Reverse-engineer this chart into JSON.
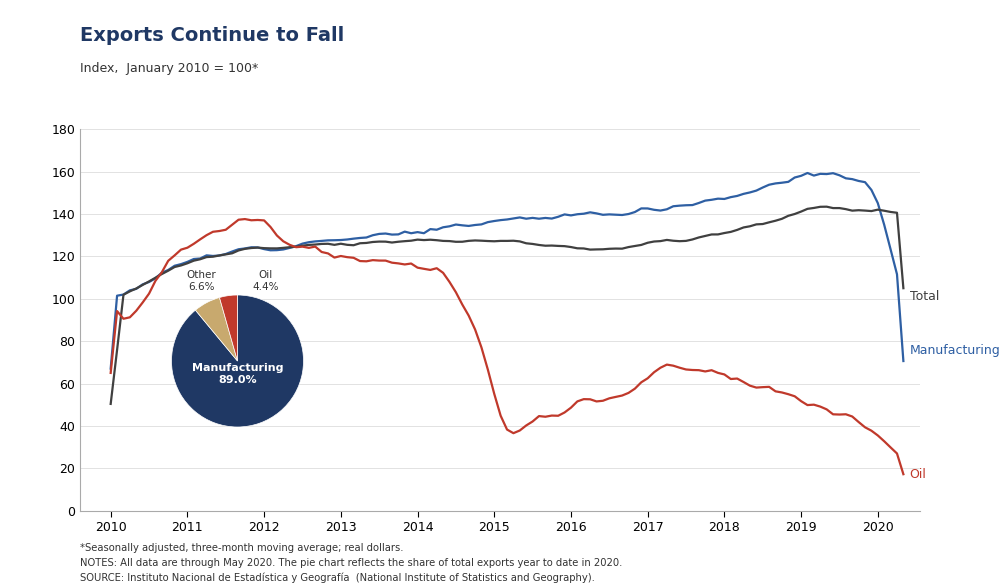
{
  "title": "Exports Continue to Fall",
  "subtitle": "Index,  January 2010 = 100*",
  "ylim": [
    0,
    180
  ],
  "yticks": [
    0,
    20,
    40,
    60,
    80,
    100,
    120,
    140,
    160,
    180
  ],
  "xlim_left": 2009.6,
  "xlim_right": 2020.55,
  "title_color": "#1F3864",
  "bg_color": "#FFFFFF",
  "line_colors": {
    "Manufacturing": "#2E5FA3",
    "Total": "#404040",
    "Oil": "#C0392B"
  },
  "pie_colors_list": [
    "#1F3864",
    "#C8A96E",
    "#C0392B"
  ],
  "pie_values": [
    89.0,
    6.6,
    4.4
  ],
  "footnote1": "*Seasonally adjusted, three-month moving average; real dollars.",
  "footnote2": "NOTES: All data are through May 2020. The pie chart reflects the share of total exports year to date in 2020.",
  "footnote3": "SOURCE: Instituto Nacional de Estadística y Geografía  (National Institute of Statistics and Geography)."
}
